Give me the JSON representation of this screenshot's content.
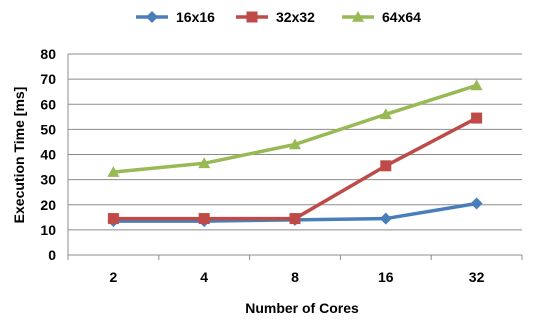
{
  "chart_data": {
    "type": "line",
    "title": "",
    "xlabel": "Number of Cores",
    "ylabel": "Execution Time [ms]",
    "categories": [
      "2",
      "4",
      "8",
      "16",
      "32"
    ],
    "ylim": [
      0,
      80
    ],
    "yticks": [
      0,
      10,
      20,
      30,
      40,
      50,
      60,
      70,
      80
    ],
    "grid": true,
    "legend_position": "top",
    "series": [
      {
        "name": "16x16",
        "values": [
          13.5,
          13.5,
          14,
          14.5,
          20.5
        ],
        "color": "#4A7EBB",
        "marker": "diamond"
      },
      {
        "name": "32x32",
        "values": [
          14.5,
          14.5,
          14.5,
          35.5,
          54.5
        ],
        "color": "#BE4B48",
        "marker": "square"
      },
      {
        "name": "64x64",
        "values": [
          33,
          36.5,
          44,
          56,
          67.5
        ],
        "color": "#98B954",
        "marker": "triangle"
      }
    ]
  }
}
